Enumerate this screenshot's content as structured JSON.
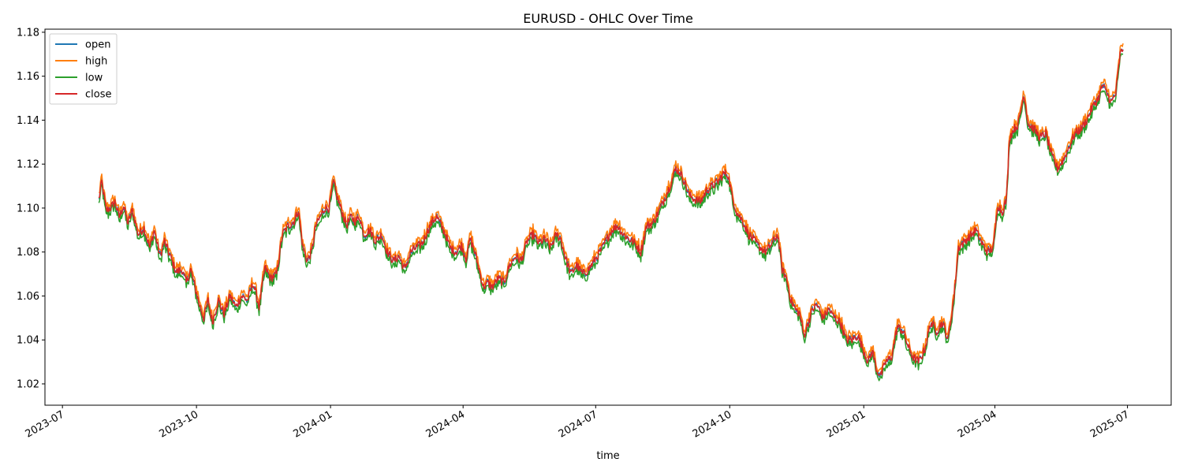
{
  "chart_data": {
    "type": "line",
    "title": "EURUSD - OHLC Over Time",
    "xlabel": "time",
    "ylabel": "",
    "xlim": [
      "2023-06-19",
      "2025-07-31"
    ],
    "ylim": [
      1.0103,
      1.1814
    ],
    "x_ticks": [
      {
        "date": "2023-07-01",
        "label": "2023-07"
      },
      {
        "date": "2023-10-01",
        "label": "2023-10"
      },
      {
        "date": "2024-01-01",
        "label": "2024-01"
      },
      {
        "date": "2024-04-01",
        "label": "2024-04"
      },
      {
        "date": "2024-07-01",
        "label": "2024-07"
      },
      {
        "date": "2024-10-01",
        "label": "2024-10"
      },
      {
        "date": "2025-01-01",
        "label": "2025-01"
      },
      {
        "date": "2025-04-01",
        "label": "2025-04"
      },
      {
        "date": "2025-07-01",
        "label": "2025-07"
      }
    ],
    "y_ticks": [
      "1.02",
      "1.04",
      "1.06",
      "1.08",
      "1.10",
      "1.12",
      "1.14",
      "1.16",
      "1.18"
    ],
    "grid": false,
    "legend_position": "top-left",
    "colors": {
      "open": "#1f77b4",
      "high": "#ff7f0e",
      "low": "#2ca02c",
      "close": "#d62728"
    },
    "series_order": [
      "open",
      "high",
      "low",
      "close"
    ],
    "close_path": [
      [
        "2023-07-26",
        1.104
      ],
      [
        "2023-07-28",
        1.112
      ],
      [
        "2023-07-31",
        1.099
      ],
      [
        "2023-08-03",
        1.1
      ],
      [
        "2023-08-06",
        1.103
      ],
      [
        "2023-08-09",
        1.096
      ],
      [
        "2023-08-12",
        1.101
      ],
      [
        "2023-08-15",
        1.093
      ],
      [
        "2023-08-18",
        1.099
      ],
      [
        "2023-08-22",
        1.088
      ],
      [
        "2023-08-26",
        1.091
      ],
      [
        "2023-08-30",
        1.082
      ],
      [
        "2023-09-02",
        1.09
      ],
      [
        "2023-09-06",
        1.078
      ],
      [
        "2023-09-09",
        1.085
      ],
      [
        "2023-09-13",
        1.078
      ],
      [
        "2023-09-17",
        1.071
      ],
      [
        "2023-09-21",
        1.072
      ],
      [
        "2023-09-24",
        1.066
      ],
      [
        "2023-09-27",
        1.072
      ],
      [
        "2023-09-30",
        1.064
      ],
      [
        "2023-10-03",
        1.056
      ],
      [
        "2023-10-06",
        1.05
      ],
      [
        "2023-10-09",
        1.058
      ],
      [
        "2023-10-12",
        1.048
      ],
      [
        "2023-10-16",
        1.058
      ],
      [
        "2023-10-20",
        1.052
      ],
      [
        "2023-10-24",
        1.06
      ],
      [
        "2023-10-28",
        1.055
      ],
      [
        "2023-11-01",
        1.06
      ],
      [
        "2023-11-05",
        1.058
      ],
      [
        "2023-11-09",
        1.066
      ],
      [
        "2023-11-13",
        1.055
      ],
      [
        "2023-11-17",
        1.073
      ],
      [
        "2023-11-21",
        1.068
      ],
      [
        "2023-11-25",
        1.07
      ],
      [
        "2023-11-29",
        1.088
      ],
      [
        "2023-12-03",
        1.092
      ],
      [
        "2023-12-07",
        1.094
      ],
      [
        "2023-12-10",
        1.099
      ],
      [
        "2023-12-13",
        1.082
      ],
      [
        "2023-12-16",
        1.076
      ],
      [
        "2023-12-19",
        1.08
      ],
      [
        "2023-12-22",
        1.092
      ],
      [
        "2023-12-25",
        1.096
      ],
      [
        "2023-12-28",
        1.1
      ],
      [
        "2023-12-31",
        1.1
      ],
      [
        "2024-01-03",
        1.112
      ],
      [
        "2024-01-06",
        1.104
      ],
      [
        "2024-01-09",
        1.098
      ],
      [
        "2024-01-12",
        1.092
      ],
      [
        "2024-01-15",
        1.096
      ],
      [
        "2024-01-18",
        1.094
      ],
      [
        "2024-01-21",
        1.096
      ],
      [
        "2024-01-24",
        1.088
      ],
      [
        "2024-01-28",
        1.09
      ],
      [
        "2024-02-01",
        1.085
      ],
      [
        "2024-02-05",
        1.088
      ],
      [
        "2024-02-09",
        1.08
      ],
      [
        "2024-02-13",
        1.076
      ],
      [
        "2024-02-17",
        1.078
      ],
      [
        "2024-02-21",
        1.072
      ],
      [
        "2024-02-25",
        1.08
      ],
      [
        "2024-02-29",
        1.082
      ],
      [
        "2024-03-04",
        1.084
      ],
      [
        "2024-03-08",
        1.09
      ],
      [
        "2024-03-11",
        1.094
      ],
      [
        "2024-03-14",
        1.096
      ],
      [
        "2024-03-17",
        1.092
      ],
      [
        "2024-03-20",
        1.088
      ],
      [
        "2024-03-23",
        1.082
      ],
      [
        "2024-03-27",
        1.08
      ],
      [
        "2024-03-31",
        1.083
      ],
      [
        "2024-04-03",
        1.077
      ],
      [
        "2024-04-06",
        1.086
      ],
      [
        "2024-04-09",
        1.08
      ],
      [
        "2024-04-12",
        1.072
      ],
      [
        "2024-04-15",
        1.064
      ],
      [
        "2024-04-18",
        1.066
      ],
      [
        "2024-04-21",
        1.064
      ],
      [
        "2024-04-25",
        1.068
      ],
      [
        "2024-04-29",
        1.066
      ],
      [
        "2024-05-03",
        1.074
      ],
      [
        "2024-05-07",
        1.078
      ],
      [
        "2024-05-11",
        1.076
      ],
      [
        "2024-05-15",
        1.085
      ],
      [
        "2024-05-19",
        1.088
      ],
      [
        "2024-05-23",
        1.084
      ],
      [
        "2024-05-27",
        1.086
      ],
      [
        "2024-05-31",
        1.082
      ],
      [
        "2024-06-04",
        1.088
      ],
      [
        "2024-06-07",
        1.086
      ],
      [
        "2024-06-10",
        1.078
      ],
      [
        "2024-06-14",
        1.07
      ],
      [
        "2024-06-18",
        1.074
      ],
      [
        "2024-06-22",
        1.07
      ],
      [
        "2024-06-26",
        1.072
      ],
      [
        "2024-06-30",
        1.076
      ],
      [
        "2024-07-04",
        1.08
      ],
      [
        "2024-07-08",
        1.085
      ],
      [
        "2024-07-12",
        1.09
      ],
      [
        "2024-07-16",
        1.092
      ],
      [
        "2024-07-20",
        1.088
      ],
      [
        "2024-07-24",
        1.086
      ],
      [
        "2024-07-28",
        1.084
      ],
      [
        "2024-08-01",
        1.08
      ],
      [
        "2024-08-05",
        1.092
      ],
      [
        "2024-08-09",
        1.093
      ],
      [
        "2024-08-13",
        1.098
      ],
      [
        "2024-08-17",
        1.104
      ],
      [
        "2024-08-21",
        1.11
      ],
      [
        "2024-08-25",
        1.118
      ],
      [
        "2024-08-28",
        1.116
      ],
      [
        "2024-08-31",
        1.112
      ],
      [
        "2024-09-03",
        1.106
      ],
      [
        "2024-09-07",
        1.104
      ],
      [
        "2024-09-11",
        1.103
      ],
      [
        "2024-09-15",
        1.108
      ],
      [
        "2024-09-19",
        1.11
      ],
      [
        "2024-09-23",
        1.112
      ],
      [
        "2024-09-27",
        1.116
      ],
      [
        "2024-09-30",
        1.115
      ],
      [
        "2024-10-03",
        1.104
      ],
      [
        "2024-10-06",
        1.098
      ],
      [
        "2024-10-10",
        1.094
      ],
      [
        "2024-10-14",
        1.088
      ],
      [
        "2024-10-18",
        1.085
      ],
      [
        "2024-10-22",
        1.082
      ],
      [
        "2024-10-26",
        1.08
      ],
      [
        "2024-10-30",
        1.084
      ],
      [
        "2024-11-03",
        1.088
      ],
      [
        "2024-11-06",
        1.072
      ],
      [
        "2024-11-09",
        1.068
      ],
      [
        "2024-11-12",
        1.058
      ],
      [
        "2024-11-15",
        1.054
      ],
      [
        "2024-11-18",
        1.052
      ],
      [
        "2024-11-21",
        1.042
      ],
      [
        "2024-11-24",
        1.048
      ],
      [
        "2024-11-27",
        1.054
      ],
      [
        "2024-11-30",
        1.056
      ],
      [
        "2024-12-04",
        1.05
      ],
      [
        "2024-12-08",
        1.054
      ],
      [
        "2024-12-12",
        1.05
      ],
      [
        "2024-12-16",
        1.048
      ],
      [
        "2024-12-20",
        1.04
      ],
      [
        "2024-12-24",
        1.04
      ],
      [
        "2024-12-28",
        1.042
      ],
      [
        "2025-01-01",
        1.035
      ],
      [
        "2025-01-04",
        1.03
      ],
      [
        "2025-01-07",
        1.035
      ],
      [
        "2025-01-10",
        1.026
      ],
      [
        "2025-01-13",
        1.024
      ],
      [
        "2025-01-16",
        1.03
      ],
      [
        "2025-01-20",
        1.032
      ],
      [
        "2025-01-24",
        1.046
      ],
      [
        "2025-01-28",
        1.044
      ],
      [
        "2025-02-01",
        1.036
      ],
      [
        "2025-02-04",
        1.032
      ],
      [
        "2025-02-08",
        1.03
      ],
      [
        "2025-02-12",
        1.036
      ],
      [
        "2025-02-16",
        1.048
      ],
      [
        "2025-02-20",
        1.044
      ],
      [
        "2025-02-24",
        1.048
      ],
      [
        "2025-02-28",
        1.04
      ],
      [
        "2025-03-04",
        1.06
      ],
      [
        "2025-03-07",
        1.082
      ],
      [
        "2025-03-10",
        1.084
      ],
      [
        "2025-03-13",
        1.086
      ],
      [
        "2025-03-16",
        1.088
      ],
      [
        "2025-03-19",
        1.09
      ],
      [
        "2025-03-23",
        1.084
      ],
      [
        "2025-03-27",
        1.08
      ],
      [
        "2025-03-31",
        1.082
      ],
      [
        "2025-04-03",
        1.102
      ],
      [
        "2025-04-06",
        1.098
      ],
      [
        "2025-04-09",
        1.104
      ],
      [
        "2025-04-11",
        1.132
      ],
      [
        "2025-04-14",
        1.136
      ],
      [
        "2025-04-17",
        1.138
      ],
      [
        "2025-04-21",
        1.152
      ],
      [
        "2025-04-24",
        1.138
      ],
      [
        "2025-04-28",
        1.136
      ],
      [
        "2025-05-02",
        1.132
      ],
      [
        "2025-05-06",
        1.134
      ],
      [
        "2025-05-10",
        1.124
      ],
      [
        "2025-05-14",
        1.118
      ],
      [
        "2025-05-18",
        1.122
      ],
      [
        "2025-05-22",
        1.128
      ],
      [
        "2025-05-26",
        1.134
      ],
      [
        "2025-05-30",
        1.136
      ],
      [
        "2025-06-03",
        1.14
      ],
      [
        "2025-06-07",
        1.146
      ],
      [
        "2025-06-11",
        1.15
      ],
      [
        "2025-06-14",
        1.156
      ],
      [
        "2025-06-17",
        1.152
      ],
      [
        "2025-06-20",
        1.148
      ],
      [
        "2025-06-23",
        1.152
      ],
      [
        "2025-06-26",
        1.17
      ],
      [
        "2025-06-28",
        1.172
      ]
    ]
  }
}
